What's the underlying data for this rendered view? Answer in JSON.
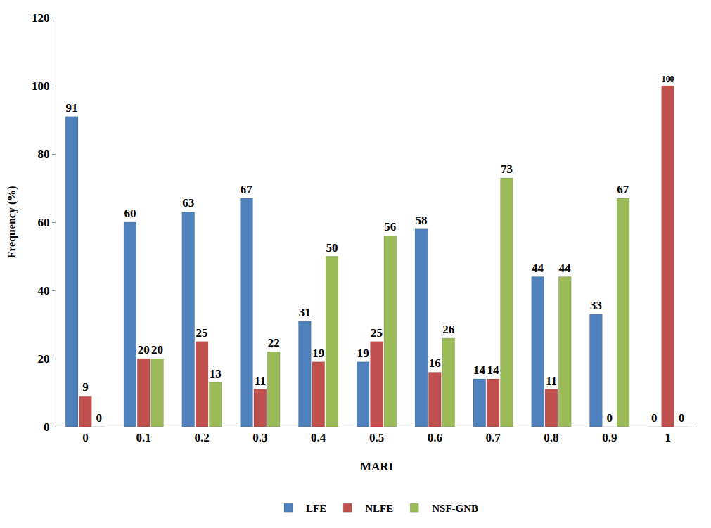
{
  "chart_data": {
    "type": "bar",
    "x_label": "MARI",
    "y_label": "Frequency (%)",
    "categories": [
      "0",
      "0.1",
      "0.2",
      "0.3",
      "0.4",
      "0.5",
      "0.6",
      "0.7",
      "0.8",
      "0.9",
      "1"
    ],
    "series": [
      {
        "name": "LFE",
        "color": "#4f81bd",
        "values": [
          91,
          60,
          63,
          67,
          31,
          19,
          58,
          14,
          44,
          33,
          0
        ]
      },
      {
        "name": "NLFE",
        "color": "#c0504d",
        "values": [
          9,
          20,
          25,
          11,
          19,
          25,
          16,
          14,
          11,
          0,
          100
        ]
      },
      {
        "name": "NSF-GNB",
        "color": "#9bbb59",
        "values": [
          0,
          20,
          13,
          22,
          50,
          56,
          26,
          73,
          44,
          67,
          0
        ]
      }
    ],
    "ylim": [
      0,
      120
    ],
    "yticks": [
      0,
      20,
      40,
      60,
      80,
      100,
      120
    ],
    "grid": false,
    "legend": "bottom",
    "data_labels": true
  }
}
